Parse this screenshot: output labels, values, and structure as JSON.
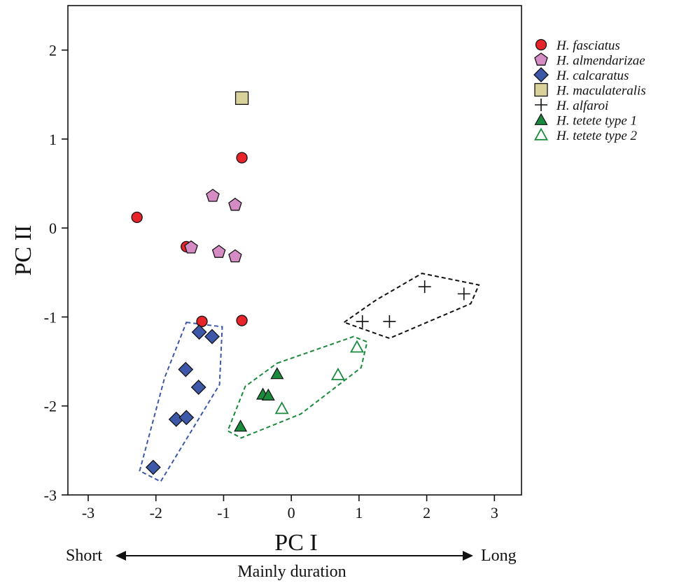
{
  "chart_data": {
    "type": "scatter",
    "title": "",
    "xlabel": "PC I",
    "ylabel": "PC II",
    "xlim": [
      -3.3,
      3.4
    ],
    "ylim": [
      -3.0,
      2.5
    ],
    "xticks": [
      -3,
      -2,
      -1,
      0,
      1,
      2,
      3
    ],
    "yticks": [
      -3,
      -2,
      -1,
      0,
      1,
      2
    ],
    "grid": false,
    "legend_position": "top-right",
    "series": [
      {
        "name": "H. fasciatus",
        "marker": "circle",
        "color": "#e8242b",
        "points": [
          [
            -2.28,
            0.12
          ],
          [
            -0.73,
            0.79
          ],
          [
            -1.55,
            -0.21
          ],
          [
            -1.32,
            -1.05
          ],
          [
            -0.73,
            -1.04
          ]
        ]
      },
      {
        "name": "H. almendarizae",
        "marker": "pentagon",
        "color": "#d58cc4",
        "points": [
          [
            -1.16,
            0.36
          ],
          [
            -0.83,
            0.26
          ],
          [
            -1.48,
            -0.22
          ],
          [
            -1.07,
            -0.27
          ],
          [
            -0.83,
            -0.32
          ]
        ]
      },
      {
        "name": "H. calcaratus",
        "marker": "diamond",
        "color": "#3d58a8",
        "points": [
          [
            -1.36,
            -1.17
          ],
          [
            -1.17,
            -1.22
          ],
          [
            -1.56,
            -1.59
          ],
          [
            -1.37,
            -1.79
          ],
          [
            -1.7,
            -2.15
          ],
          [
            -1.55,
            -2.13
          ],
          [
            -2.04,
            -2.69
          ]
        ]
      },
      {
        "name": "H. maculateralis",
        "marker": "square",
        "color": "#d9d19a",
        "points": [
          [
            -0.73,
            1.46
          ]
        ]
      },
      {
        "name": "H. alfaroi",
        "marker": "plus",
        "color": "#111111",
        "points": [
          [
            1.05,
            -1.05
          ],
          [
            1.45,
            -1.05
          ],
          [
            1.97,
            -0.66
          ],
          [
            2.55,
            -0.74
          ]
        ]
      },
      {
        "name": "H. tetete type 1",
        "marker": "triangle-filled",
        "color": "#1a8a3c",
        "points": [
          [
            -0.21,
            -1.64
          ],
          [
            -0.42,
            -1.87
          ],
          [
            -0.34,
            -1.88
          ],
          [
            -0.75,
            -2.23
          ]
        ]
      },
      {
        "name": "H. tetete type 2",
        "marker": "triangle-open",
        "color": "#1a8a3c",
        "points": [
          [
            0.97,
            -1.34
          ],
          [
            0.69,
            -1.65
          ],
          [
            -0.14,
            -2.03
          ]
        ]
      }
    ],
    "hulls": [
      {
        "series": "H. calcaratus",
        "color": "#3d58a8",
        "points": [
          [
            -1.55,
            -1.06
          ],
          [
            -1.02,
            -1.11
          ],
          [
            -1.06,
            -1.76
          ],
          [
            -1.93,
            -2.85
          ],
          [
            -2.24,
            -2.73
          ],
          [
            -1.87,
            -1.68
          ]
        ]
      },
      {
        "series": "H. alfaroi",
        "color": "#111111",
        "points": [
          [
            0.78,
            -1.06
          ],
          [
            1.25,
            -0.81
          ],
          [
            1.93,
            -0.51
          ],
          [
            2.77,
            -0.64
          ],
          [
            2.65,
            -0.85
          ],
          [
            1.45,
            -1.24
          ]
        ]
      },
      {
        "series": "H. tetete",
        "color": "#1a8a3c",
        "points": [
          [
            -0.21,
            -1.52
          ],
          [
            0.92,
            -1.22
          ],
          [
            1.12,
            -1.28
          ],
          [
            1.03,
            -1.57
          ],
          [
            0.14,
            -2.09
          ],
          [
            -0.74,
            -2.36
          ],
          [
            -0.94,
            -2.28
          ],
          [
            -0.68,
            -1.78
          ]
        ]
      }
    ],
    "bottom_annotation": {
      "left": "Short",
      "right": "Long",
      "caption": "Mainly duration"
    }
  }
}
